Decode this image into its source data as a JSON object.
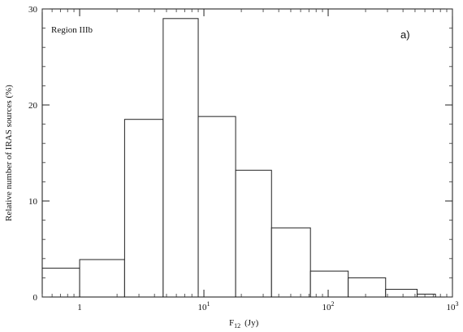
{
  "chart_data": {
    "type": "bar",
    "xscale": "log",
    "xlim": [
      0.5,
      1000
    ],
    "ylim": [
      0,
      30
    ],
    "xlabel_main": "F",
    "xlabel_sub": "12",
    "xlabel_unit": "(Jy)",
    "ylabel": "Relative number of IRAS sources (%)",
    "annotations": {
      "region": "Region IIIb",
      "panel": "a)"
    },
    "xticks": [
      {
        "value": 1,
        "base": "1",
        "exp": ""
      },
      {
        "value": 10,
        "base": "10",
        "exp": "1"
      },
      {
        "value": 100,
        "base": "10",
        "exp": "2"
      },
      {
        "value": 1000,
        "base": "10",
        "exp": "3"
      }
    ],
    "yticks": [
      0,
      10,
      20,
      30
    ],
    "bins": [
      {
        "x0": 0.5,
        "x1": 1.0,
        "value": 3.0
      },
      {
        "x0": 1.0,
        "x1": 2.3,
        "value": 3.9
      },
      {
        "x0": 2.3,
        "x1": 4.7,
        "value": 18.5
      },
      {
        "x0": 4.7,
        "x1": 9.0,
        "value": 29.0
      },
      {
        "x0": 9.0,
        "x1": 18.0,
        "value": 18.8
      },
      {
        "x0": 18.0,
        "x1": 35.0,
        "value": 13.2
      },
      {
        "x0": 35.0,
        "x1": 72.0,
        "value": 7.2
      },
      {
        "x0": 72.0,
        "x1": 145.0,
        "value": 2.7
      },
      {
        "x0": 145.0,
        "x1": 290.0,
        "value": 2.0
      },
      {
        "x0": 290.0,
        "x1": 520.0,
        "value": 0.8
      },
      {
        "x0": 520.0,
        "x1": 730.0,
        "value": 0.3
      }
    ]
  }
}
